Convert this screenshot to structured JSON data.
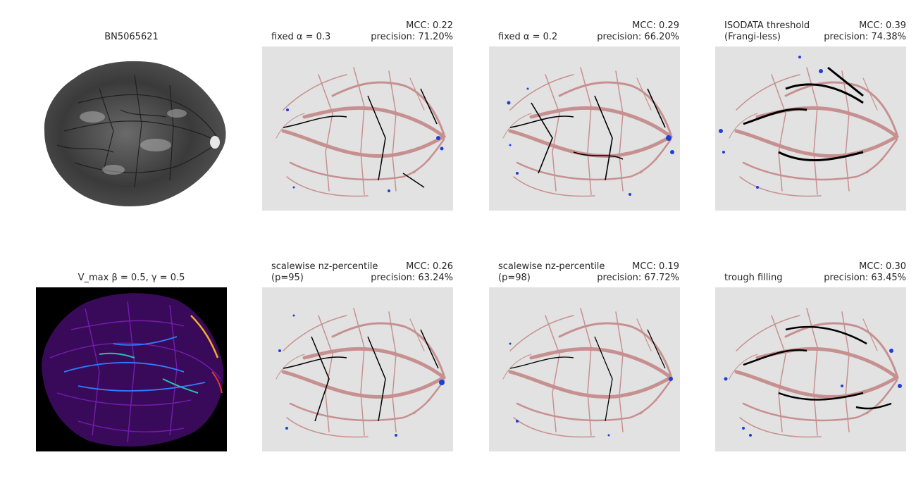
{
  "panels": [
    {
      "left": "BN5065621",
      "center": true,
      "right": ""
    },
    {
      "left": "fixed α = 0.3",
      "right_top": "MCC: 0.22",
      "right_bottom": "precision: 71.20%"
    },
    {
      "left": "fixed α = 0.2",
      "right_top": "MCC: 0.29",
      "right_bottom": "precision: 66.20%"
    },
    {
      "left_top": "ISODATA threshold",
      "left_bottom": "(Frangi-less)",
      "right_top": "MCC: 0.39",
      "right_bottom": "precision: 74.38%"
    },
    {
      "left": "V_max β = 0.5, γ = 0.5",
      "center": true
    },
    {
      "left_top": "scalewise nz-percentile",
      "left_bottom": "(p=95)",
      "right_top": "MCC: 0.26",
      "right_bottom": "precision: 63.24%"
    },
    {
      "left_top": "scalewise nz-percentile",
      "left_bottom": "(p=98)",
      "right_top": "MCC: 0.19",
      "right_bottom": "precision: 67.72%"
    },
    {
      "left": "trough filling",
      "right_top": "MCC: 0.30",
      "right_bottom": "precision: 63.45%"
    }
  ],
  "colors": {
    "background": "#e2e2e2",
    "truth_vessel": "#c79090",
    "false_positive": "#1f3fd6",
    "detected": "#000000"
  }
}
